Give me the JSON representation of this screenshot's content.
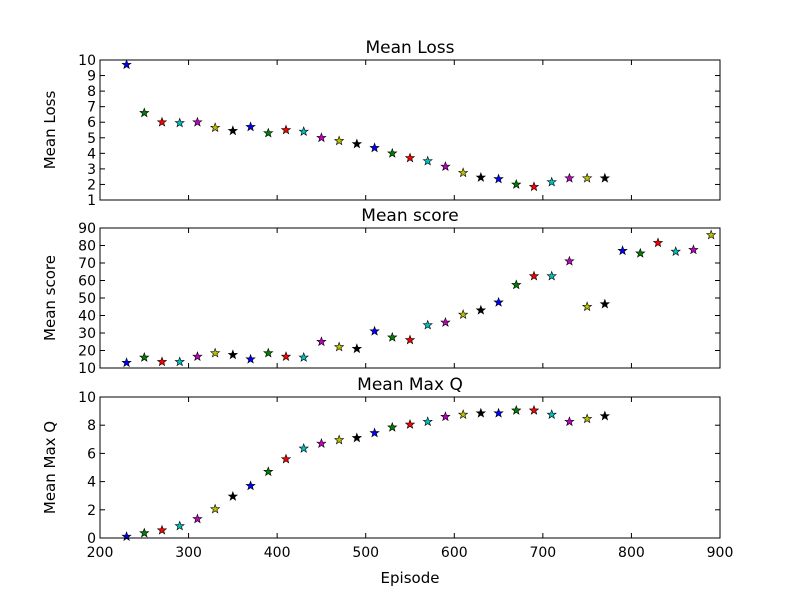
{
  "chart_data": [
    {
      "type": "scatter",
      "title": "Mean Loss",
      "xlabel": "",
      "ylabel": "Mean Loss",
      "xlim": [
        200,
        900
      ],
      "ylim": [
        1,
        10
      ],
      "yticks": [
        1,
        2,
        3,
        4,
        5,
        6,
        7,
        8,
        9,
        10
      ],
      "xticks": [
        200,
        300,
        400,
        500,
        600,
        700,
        800,
        900
      ],
      "show_xtick_labels": false,
      "marker": "star",
      "points": [
        {
          "x": 230,
          "y": 9.7
        },
        {
          "x": 250,
          "y": 6.6
        },
        {
          "x": 270,
          "y": 6.0
        },
        {
          "x": 290,
          "y": 5.95
        },
        {
          "x": 310,
          "y": 6.0
        },
        {
          "x": 330,
          "y": 5.65
        },
        {
          "x": 350,
          "y": 5.45
        },
        {
          "x": 370,
          "y": 5.7
        },
        {
          "x": 390,
          "y": 5.3
        },
        {
          "x": 410,
          "y": 5.5
        },
        {
          "x": 430,
          "y": 5.4
        },
        {
          "x": 450,
          "y": 5.0
        },
        {
          "x": 470,
          "y": 4.8
        },
        {
          "x": 490,
          "y": 4.6
        },
        {
          "x": 510,
          "y": 4.35
        },
        {
          "x": 530,
          "y": 4.0
        },
        {
          "x": 550,
          "y": 3.7
        },
        {
          "x": 570,
          "y": 3.5
        },
        {
          "x": 590,
          "y": 3.15
        },
        {
          "x": 610,
          "y": 2.75
        },
        {
          "x": 630,
          "y": 2.45
        },
        {
          "x": 650,
          "y": 2.35
        },
        {
          "x": 670,
          "y": 2.0
        },
        {
          "x": 690,
          "y": 1.85
        },
        {
          "x": 710,
          "y": 2.15
        },
        {
          "x": 730,
          "y": 2.4
        },
        {
          "x": 750,
          "y": 2.4
        },
        {
          "x": 770,
          "y": 2.4
        }
      ]
    },
    {
      "type": "scatter",
      "title": "Mean score",
      "xlabel": "",
      "ylabel": "Mean score",
      "xlim": [
        200,
        900
      ],
      "ylim": [
        10,
        90
      ],
      "yticks": [
        10,
        20,
        30,
        40,
        50,
        60,
        70,
        80,
        90
      ],
      "xticks": [
        200,
        300,
        400,
        500,
        600,
        700,
        800,
        900
      ],
      "show_xtick_labels": false,
      "marker": "star",
      "points": [
        {
          "x": 230,
          "y": 13
        },
        {
          "x": 250,
          "y": 16
        },
        {
          "x": 270,
          "y": 13.5
        },
        {
          "x": 290,
          "y": 13.5
        },
        {
          "x": 310,
          "y": 16.5
        },
        {
          "x": 330,
          "y": 18.5
        },
        {
          "x": 350,
          "y": 17.5
        },
        {
          "x": 370,
          "y": 15
        },
        {
          "x": 390,
          "y": 18.5
        },
        {
          "x": 410,
          "y": 16.5
        },
        {
          "x": 430,
          "y": 16
        },
        {
          "x": 450,
          "y": 25
        },
        {
          "x": 470,
          "y": 22
        },
        {
          "x": 490,
          "y": 21
        },
        {
          "x": 510,
          "y": 31
        },
        {
          "x": 530,
          "y": 27.5
        },
        {
          "x": 550,
          "y": 26
        },
        {
          "x": 570,
          "y": 34.5
        },
        {
          "x": 590,
          "y": 36
        },
        {
          "x": 610,
          "y": 40.5
        },
        {
          "x": 630,
          "y": 43
        },
        {
          "x": 650,
          "y": 47.5
        },
        {
          "x": 670,
          "y": 57.5
        },
        {
          "x": 690,
          "y": 62.5
        },
        {
          "x": 710,
          "y": 62.5
        },
        {
          "x": 730,
          "y": 71
        },
        {
          "x": 750,
          "y": 45
        },
        {
          "x": 770,
          "y": 46.5
        },
        {
          "x": 790,
          "y": 77
        },
        {
          "x": 810,
          "y": 75.5
        },
        {
          "x": 830,
          "y": 81.5
        },
        {
          "x": 850,
          "y": 76.5
        },
        {
          "x": 870,
          "y": 77.5
        },
        {
          "x": 890,
          "y": 86
        }
      ]
    },
    {
      "type": "scatter",
      "title": "Mean Max Q",
      "xlabel": "Episode",
      "ylabel": "Mean Max Q",
      "xlim": [
        200,
        900
      ],
      "ylim": [
        0,
        10
      ],
      "yticks": [
        0,
        2,
        4,
        6,
        8,
        10
      ],
      "xticks": [
        200,
        300,
        400,
        500,
        600,
        700,
        800,
        900
      ],
      "show_xtick_labels": true,
      "marker": "star",
      "points": [
        {
          "x": 230,
          "y": 0.1
        },
        {
          "x": 250,
          "y": 0.35
        },
        {
          "x": 270,
          "y": 0.55
        },
        {
          "x": 290,
          "y": 0.85
        },
        {
          "x": 310,
          "y": 1.35
        },
        {
          "x": 330,
          "y": 2.05
        },
        {
          "x": 350,
          "y": 2.95
        },
        {
          "x": 370,
          "y": 3.7
        },
        {
          "x": 390,
          "y": 4.7
        },
        {
          "x": 410,
          "y": 5.6
        },
        {
          "x": 430,
          "y": 6.35
        },
        {
          "x": 450,
          "y": 6.7
        },
        {
          "x": 470,
          "y": 6.95
        },
        {
          "x": 490,
          "y": 7.1
        },
        {
          "x": 510,
          "y": 7.45
        },
        {
          "x": 530,
          "y": 7.85
        },
        {
          "x": 550,
          "y": 8.05
        },
        {
          "x": 570,
          "y": 8.25
        },
        {
          "x": 590,
          "y": 8.6
        },
        {
          "x": 610,
          "y": 8.75
        },
        {
          "x": 630,
          "y": 8.85
        },
        {
          "x": 650,
          "y": 8.85
        },
        {
          "x": 670,
          "y": 9.05
        },
        {
          "x": 690,
          "y": 9.05
        },
        {
          "x": 710,
          "y": 8.75
        },
        {
          "x": 730,
          "y": 8.25
        },
        {
          "x": 750,
          "y": 8.45
        },
        {
          "x": 770,
          "y": 8.65
        }
      ]
    }
  ],
  "colors": {
    "marker_cycle": [
      "#0000ff",
      "#008000",
      "#ff0000",
      "#00bfbf",
      "#bf00bf",
      "#bfbf00",
      "#000000"
    ],
    "axes": "#000000",
    "background": "#ffffff"
  }
}
